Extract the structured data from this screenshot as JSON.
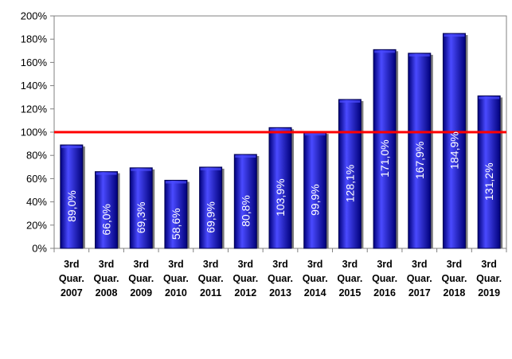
{
  "chart_data": {
    "type": "bar",
    "categories": [
      [
        "3rd",
        "Quar.",
        "2007"
      ],
      [
        "3rd",
        "Quar.",
        "2008"
      ],
      [
        "3rd",
        "Quar.",
        "2009"
      ],
      [
        "3rd",
        "Quar.",
        "2010"
      ],
      [
        "3rd",
        "Quar.",
        "2011"
      ],
      [
        "3rd",
        "Quar.",
        "2012"
      ],
      [
        "3rd",
        "Quar.",
        "2013"
      ],
      [
        "3rd",
        "Quar.",
        "2014"
      ],
      [
        "3rd",
        "Quar.",
        "2015"
      ],
      [
        "3rd",
        "Quar.",
        "2016"
      ],
      [
        "3rd",
        "Quar.",
        "2017"
      ],
      [
        "3rd",
        "Quar.",
        "2018"
      ],
      [
        "3rd",
        "Quar.",
        "2019"
      ]
    ],
    "values": [
      89.0,
      66.0,
      69.3,
      58.6,
      69.9,
      80.8,
      103.9,
      99.9,
      128.1,
      171.0,
      167.9,
      184.9,
      131.2
    ],
    "data_labels": [
      "89,0%",
      "66,0%",
      "69,3%",
      "58,6%",
      "69,9%",
      "80,8%",
      "103,9%",
      "99,9%",
      "128,1%",
      "171,0%",
      "167,9%",
      "184,9%",
      "131,2%"
    ],
    "yticks": [
      0,
      20,
      40,
      60,
      80,
      100,
      120,
      140,
      160,
      180,
      200
    ],
    "ytick_labels": [
      "0%",
      "20%",
      "40%",
      "60%",
      "80%",
      "100%",
      "120%",
      "140%",
      "160%",
      "180%",
      "200%"
    ],
    "ylim": [
      0,
      200
    ],
    "reference_line": 100,
    "title": "",
    "xlabel": "",
    "ylabel": "",
    "grid": false,
    "colors": {
      "bar": "#1f1fc4",
      "bar_dark": "#00007a",
      "bar_light": "#4a4aff",
      "bar_outline": "#000050",
      "reference_line": "#ff0000",
      "axis": "#808080"
    }
  }
}
